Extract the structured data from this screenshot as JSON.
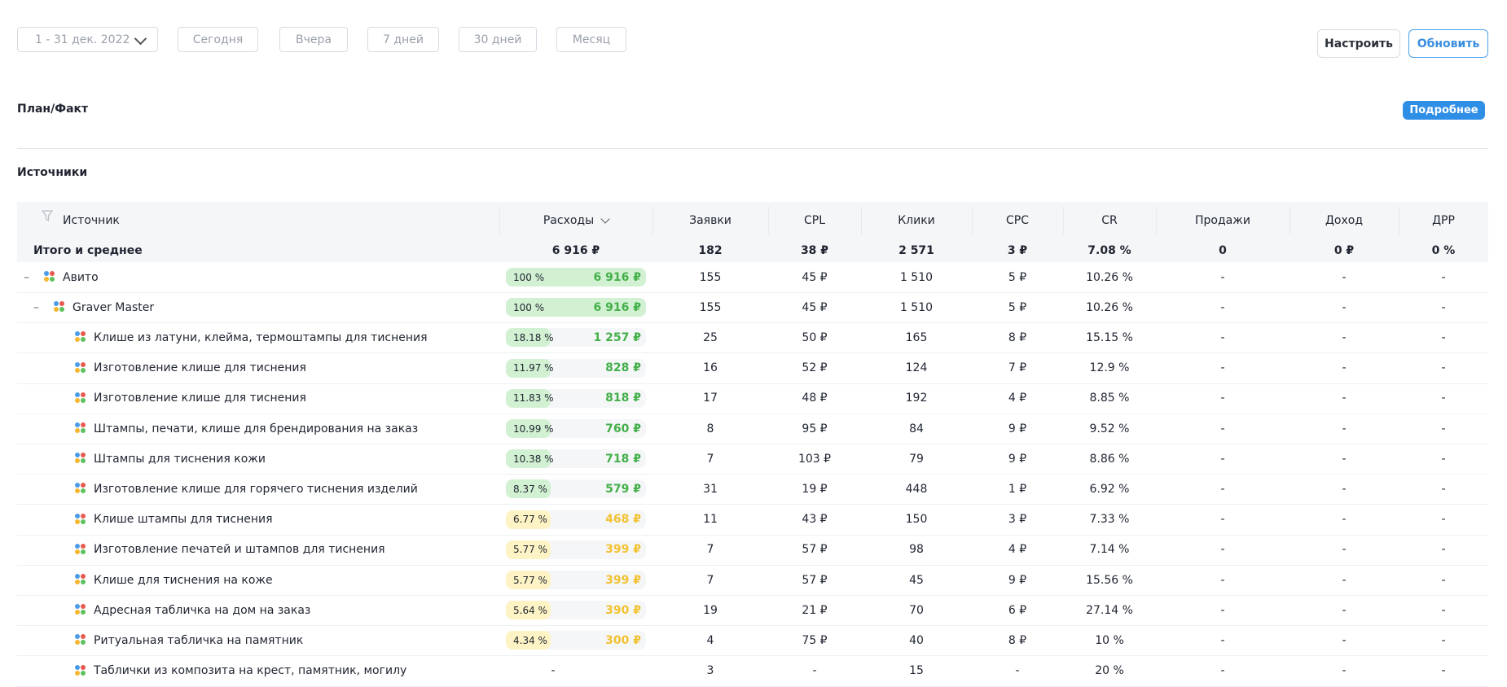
{
  "toolbar": {
    "date_range": "1 - 31 дек. 2022",
    "presets": [
      "Сегодня",
      "Вчера",
      "7 дней",
      "30 дней",
      "Месяц"
    ],
    "setup_label": "Настроить",
    "refresh_label": "Обновить"
  },
  "plan": {
    "title": "План/Факт",
    "more_label": "Подробнее"
  },
  "sources": {
    "title": "Источники",
    "columns": [
      "Источник",
      "Расходы",
      "Заявки",
      "CPL",
      "Клики",
      "CPC",
      "CR",
      "Продажи",
      "Доход",
      "ДРР"
    ],
    "total": {
      "label": "Итого и среднее",
      "values": [
        "6 916 ₽",
        "182",
        "38 ₽",
        "2 571",
        "3 ₽",
        "7.08 %",
        "0",
        "0 ₽",
        "0 %"
      ]
    },
    "rows": [
      {
        "name": "Авито",
        "level": 0,
        "toggle": "–",
        "pct": "100 %",
        "pct_value": 100,
        "spend": "6 916 ₽",
        "spend_tier": "green",
        "leads": "155",
        "cpl": "45 ₽",
        "clicks": "1 510",
        "cpc": "5 ₽",
        "cr": "10.26 %",
        "sales": "-",
        "income": "-",
        "drr": "-"
      },
      {
        "name": "Graver Master",
        "level": 1,
        "toggle": "–",
        "pct": "100 %",
        "pct_value": 100,
        "spend": "6 916 ₽",
        "spend_tier": "green",
        "leads": "155",
        "cpl": "45 ₽",
        "clicks": "1 510",
        "cpc": "5 ₽",
        "cr": "10.26 %",
        "sales": "-",
        "income": "-",
        "drr": "-"
      },
      {
        "name": "Клише из латуни, клейма, термоштампы для тиснения",
        "level": 2,
        "toggle": "",
        "pct": "18.18 %",
        "pct_value": 18.18,
        "spend": "1 257 ₽",
        "spend_tier": "green",
        "leads": "25",
        "cpl": "50 ₽",
        "clicks": "165",
        "cpc": "8 ₽",
        "cr": "15.15 %",
        "sales": "-",
        "income": "-",
        "drr": "-"
      },
      {
        "name": "Изготовление клише для тиснения",
        "level": 2,
        "toggle": "",
        "pct": "11.97 %",
        "pct_value": 11.97,
        "spend": "828 ₽",
        "spend_tier": "green",
        "leads": "16",
        "cpl": "52 ₽",
        "clicks": "124",
        "cpc": "7 ₽",
        "cr": "12.9 %",
        "sales": "-",
        "income": "-",
        "drr": "-"
      },
      {
        "name": "Изготовление клише для тиснения",
        "level": 2,
        "toggle": "",
        "pct": "11.83 %",
        "pct_value": 11.83,
        "spend": "818 ₽",
        "spend_tier": "green",
        "leads": "17",
        "cpl": "48 ₽",
        "clicks": "192",
        "cpc": "4 ₽",
        "cr": "8.85 %",
        "sales": "-",
        "income": "-",
        "drr": "-"
      },
      {
        "name": "Штампы, печати, клише для брендирования на заказ",
        "level": 2,
        "toggle": "",
        "pct": "10.99 %",
        "pct_value": 10.99,
        "spend": "760 ₽",
        "spend_tier": "green",
        "leads": "8",
        "cpl": "95 ₽",
        "clicks": "84",
        "cpc": "9 ₽",
        "cr": "9.52 %",
        "sales": "-",
        "income": "-",
        "drr": "-"
      },
      {
        "name": "Штампы для тиснения кожи",
        "level": 2,
        "toggle": "",
        "pct": "10.38 %",
        "pct_value": 10.38,
        "spend": "718 ₽",
        "spend_tier": "green",
        "leads": "7",
        "cpl": "103 ₽",
        "clicks": "79",
        "cpc": "9 ₽",
        "cr": "8.86 %",
        "sales": "-",
        "income": "-",
        "drr": "-"
      },
      {
        "name": "Изготовление клише для горячего тиснения изделий",
        "level": 2,
        "toggle": "",
        "pct": "8.37 %",
        "pct_value": 8.37,
        "spend": "579 ₽",
        "spend_tier": "green",
        "leads": "31",
        "cpl": "19 ₽",
        "clicks": "448",
        "cpc": "1 ₽",
        "cr": "6.92 %",
        "sales": "-",
        "income": "-",
        "drr": "-"
      },
      {
        "name": "Клише штампы для тиснения",
        "level": 2,
        "toggle": "",
        "pct": "6.77 %",
        "pct_value": 6.77,
        "spend": "468 ₽",
        "spend_tier": "yellow",
        "leads": "11",
        "cpl": "43 ₽",
        "clicks": "150",
        "cpc": "3 ₽",
        "cr": "7.33 %",
        "sales": "-",
        "income": "-",
        "drr": "-"
      },
      {
        "name": "Изготовление печатей и штампов для тиснения",
        "level": 2,
        "toggle": "",
        "pct": "5.77 %",
        "pct_value": 5.77,
        "spend": "399 ₽",
        "spend_tier": "yellow",
        "leads": "7",
        "cpl": "57 ₽",
        "clicks": "98",
        "cpc": "4 ₽",
        "cr": "7.14 %",
        "sales": "-",
        "income": "-",
        "drr": "-"
      },
      {
        "name": "Клише для тиснения на коже",
        "level": 2,
        "toggle": "",
        "pct": "5.77 %",
        "pct_value": 5.77,
        "spend": "399 ₽",
        "spend_tier": "yellow",
        "leads": "7",
        "cpl": "57 ₽",
        "clicks": "45",
        "cpc": "9 ₽",
        "cr": "15.56 %",
        "sales": "-",
        "income": "-",
        "drr": "-"
      },
      {
        "name": "Адресная табличка на дом на заказ",
        "level": 2,
        "toggle": "",
        "pct": "5.64 %",
        "pct_value": 5.64,
        "spend": "390 ₽",
        "spend_tier": "yellow",
        "leads": "19",
        "cpl": "21 ₽",
        "clicks": "70",
        "cpc": "6 ₽",
        "cr": "27.14 %",
        "sales": "-",
        "income": "-",
        "drr": "-"
      },
      {
        "name": "Ритуальная табличка на памятник",
        "level": 2,
        "toggle": "",
        "pct": "4.34 %",
        "pct_value": 4.34,
        "spend": "300 ₽",
        "spend_tier": "yellow",
        "leads": "4",
        "cpl": "75 ₽",
        "clicks": "40",
        "cpc": "8 ₽",
        "cr": "10 %",
        "sales": "-",
        "income": "-",
        "drr": "-"
      },
      {
        "name": "Таблички из композита на крест, памятник, могилу",
        "level": 2,
        "toggle": "",
        "pct": "",
        "pct_value": 0,
        "spend": "-",
        "spend_tier": "none",
        "leads": "3",
        "cpl": "-",
        "clicks": "15",
        "cpc": "-",
        "cr": "20 %",
        "sales": "-",
        "income": "-",
        "drr": "-"
      }
    ]
  },
  "colors": {
    "green_fill": "#d2f1d2",
    "green_text": "#44b04a",
    "yellow_fill": "#fdf3c4",
    "yellow_text": "#f2c231",
    "track": "#f5f6f8",
    "accent": "#2f8ee6"
  },
  "icons": {
    "source": "source-dots-icon",
    "filter": "filter-icon",
    "dropdown": "chevron-down-icon"
  }
}
